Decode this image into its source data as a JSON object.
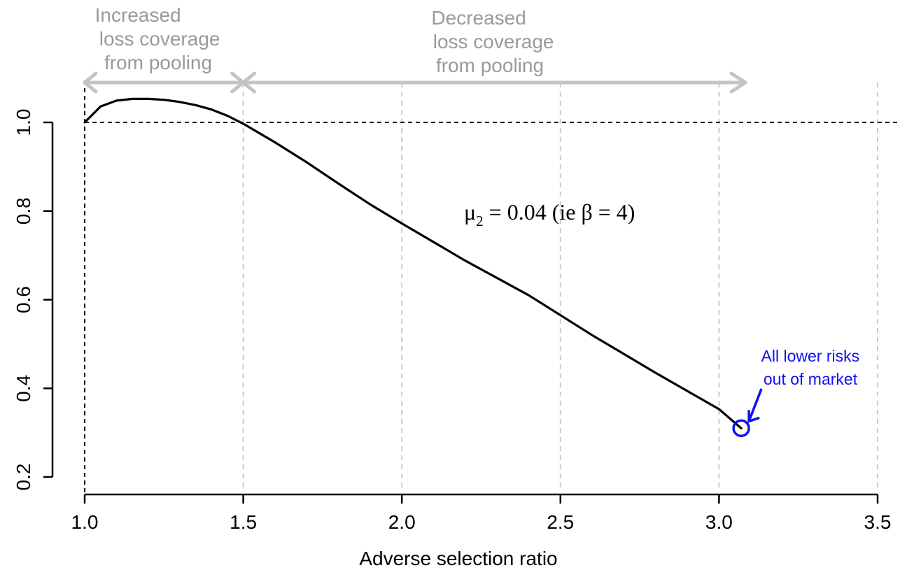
{
  "chart_data": {
    "type": "line",
    "xlabel": "Adverse selection ratio",
    "ylabel": "",
    "xlim": [
      1.0,
      3.5
    ],
    "ylim": [
      0.2,
      1.0
    ],
    "x_ticks": [
      "1.0",
      "1.5",
      "2.0",
      "2.5",
      "3.0",
      "3.5"
    ],
    "y_ticks": [
      "0.2",
      "0.4",
      "0.6",
      "0.8",
      "1.0"
    ],
    "x_tick_values": [
      1.0,
      1.5,
      2.0,
      2.5,
      3.0,
      3.5
    ],
    "y_tick_values": [
      0.2,
      0.4,
      0.6,
      0.8,
      1.0
    ],
    "grid": "vertical dashed gridlines",
    "reference_line_y": 1.0,
    "reference_line_x": 1.0,
    "series": [
      {
        "x": [
          1.0,
          1.05,
          1.1,
          1.15,
          1.2,
          1.25,
          1.3,
          1.35,
          1.4,
          1.45,
          1.5,
          1.6,
          1.7,
          1.8,
          1.9,
          2.0,
          2.2,
          2.4,
          2.6,
          2.8,
          3.0,
          3.07
        ],
        "values": [
          1.0,
          1.036,
          1.049,
          1.053,
          1.053,
          1.051,
          1.046,
          1.039,
          1.029,
          1.015,
          0.997,
          0.955,
          0.91,
          0.862,
          0.815,
          0.772,
          0.688,
          0.61,
          0.52,
          0.435,
          0.353,
          0.31
        ]
      }
    ],
    "endpoint": {
      "x": 3.07,
      "y": 0.31,
      "color": "#1010ee"
    },
    "annotations": {
      "formula": {
        "mu": "μ",
        "sub": "2",
        "rest": " = 0.04 (ie β = 4)"
      },
      "region_left": [
        "Increased",
        "loss coverage",
        "from pooling"
      ],
      "region_right": [
        "Decreased",
        "loss coverage",
        "from pooling"
      ],
      "callout": [
        "All lower risks",
        "out of market"
      ]
    },
    "colors": {
      "curve": "#000000",
      "grid": "#cccccc",
      "region_arrow": "#c4c4c4",
      "region_text": "#9a9a9a",
      "callout": "#1010ee"
    }
  }
}
